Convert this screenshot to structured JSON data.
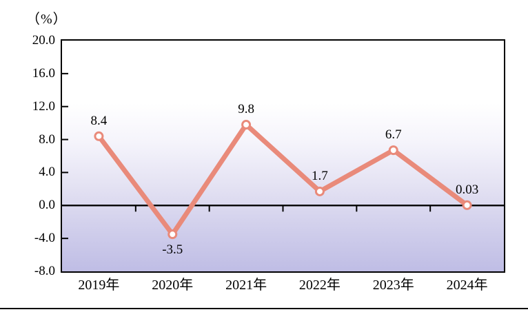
{
  "chart_data": {
    "type": "line",
    "title": "（%）",
    "ylabel": "(%)",
    "xlabel": "",
    "categories": [
      "2019年",
      "2020年",
      "2021年",
      "2022年",
      "2023年",
      "2024年"
    ],
    "values": [
      8.4,
      -3.5,
      9.8,
      1.7,
      6.7,
      0.03
    ],
    "point_labels": [
      "8.4",
      "-3.5",
      "9.8",
      "1.7",
      "6.7",
      "0.03"
    ],
    "point_label_positions": [
      "above",
      "below",
      "above",
      "above",
      "above",
      "above"
    ],
    "ylim": [
      -8.0,
      20.0
    ],
    "yticks": [
      20.0,
      16.0,
      12.0,
      8.0,
      4.0,
      0.0,
      -4.0,
      -8.0
    ],
    "ytick_labels": [
      "20.0",
      "16.0",
      "12.0",
      "8.0",
      "4.0",
      "0.0",
      "-4.0",
      "-8.0"
    ],
    "grid": false,
    "legend": "none",
    "line_color": "#E98A7A",
    "marker_fill": "#FFFFFF",
    "axis_color": "#000000",
    "label_color": "#000000",
    "plot_bg_gradient": [
      "#FFFFFF",
      "#BFBDE5"
    ]
  }
}
